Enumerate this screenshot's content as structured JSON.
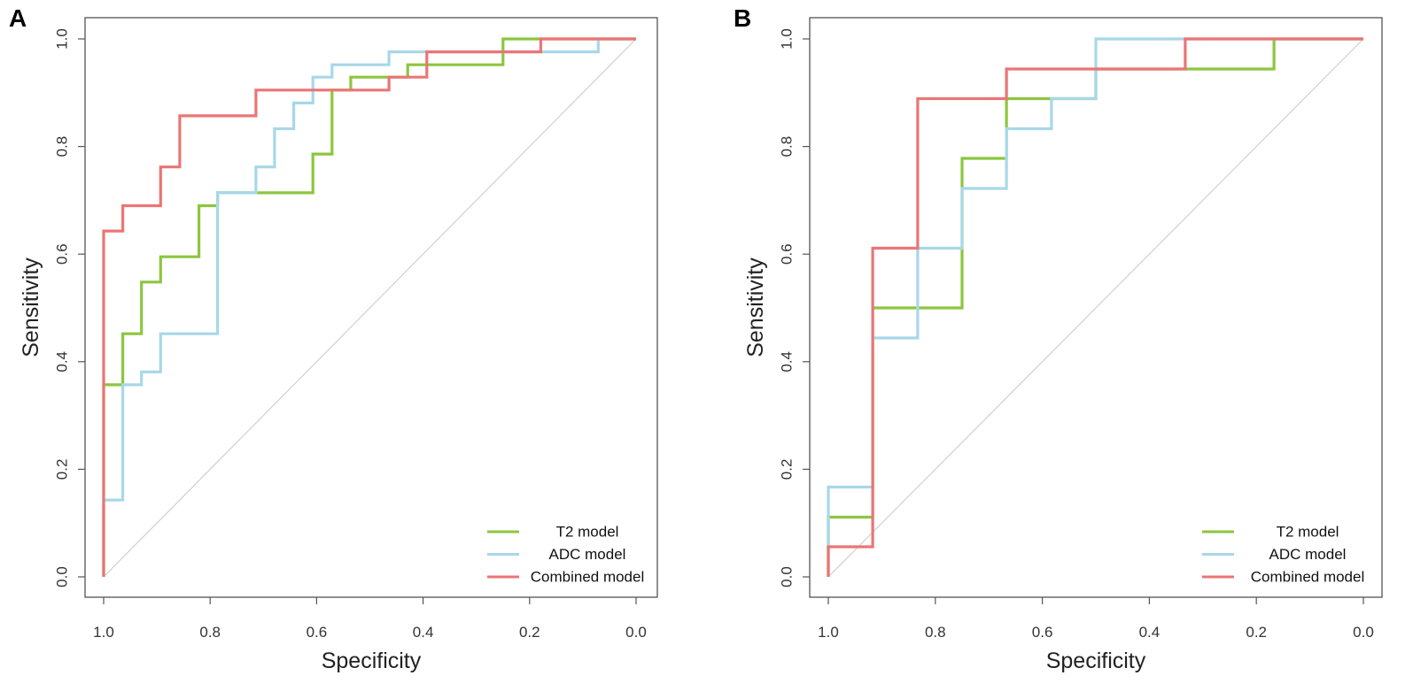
{
  "colors": {
    "t2": "#8CC63F",
    "adc": "#A7D8E8",
    "combined": "#EB7576",
    "diagonal": "#C8C8C8",
    "frame": "#555555"
  },
  "chart_data": [
    {
      "type": "line",
      "panel_label": "A",
      "title": "",
      "xlabel": "Specificity",
      "ylabel": "Sensitivity",
      "xlim": [
        1.0,
        0.0
      ],
      "ylim": [
        0.0,
        1.0
      ],
      "x_ticks": [
        "1.0",
        "0.8",
        "0.6",
        "0.4",
        "0.2",
        "0.0"
      ],
      "y_ticks": [
        "0.0",
        "0.2",
        "0.4",
        "0.6",
        "0.8",
        "1.0"
      ],
      "reference_line": "diagonal",
      "legend_position": "bottom-right",
      "series": [
        {
          "name": "T2 model",
          "color_key": "t2",
          "points": [
            [
              1.0,
              0.0
            ],
            [
              1.0,
              0.357
            ],
            [
              0.964,
              0.357
            ],
            [
              0.964,
              0.452
            ],
            [
              0.929,
              0.452
            ],
            [
              0.929,
              0.548
            ],
            [
              0.893,
              0.548
            ],
            [
              0.893,
              0.595
            ],
            [
              0.821,
              0.595
            ],
            [
              0.821,
              0.69
            ],
            [
              0.786,
              0.69
            ],
            [
              0.786,
              0.714
            ],
            [
              0.607,
              0.714
            ],
            [
              0.607,
              0.786
            ],
            [
              0.571,
              0.786
            ],
            [
              0.571,
              0.905
            ],
            [
              0.536,
              0.905
            ],
            [
              0.536,
              0.929
            ],
            [
              0.464,
              0.929
            ],
            [
              0.429,
              0.929
            ],
            [
              0.429,
              0.952
            ],
            [
              0.25,
              0.952
            ],
            [
              0.25,
              1.0
            ],
            [
              0.0,
              1.0
            ]
          ]
        },
        {
          "name": "ADC model",
          "color_key": "adc",
          "points": [
            [
              1.0,
              0.0
            ],
            [
              1.0,
              0.143
            ],
            [
              0.964,
              0.143
            ],
            [
              0.964,
              0.357
            ],
            [
              0.929,
              0.357
            ],
            [
              0.929,
              0.381
            ],
            [
              0.893,
              0.381
            ],
            [
              0.893,
              0.452
            ],
            [
              0.786,
              0.452
            ],
            [
              0.786,
              0.714
            ],
            [
              0.714,
              0.714
            ],
            [
              0.714,
              0.762
            ],
            [
              0.679,
              0.762
            ],
            [
              0.679,
              0.833
            ],
            [
              0.643,
              0.833
            ],
            [
              0.643,
              0.881
            ],
            [
              0.607,
              0.881
            ],
            [
              0.607,
              0.929
            ],
            [
              0.571,
              0.929
            ],
            [
              0.571,
              0.952
            ],
            [
              0.464,
              0.952
            ],
            [
              0.464,
              0.976
            ],
            [
              0.071,
              0.976
            ],
            [
              0.071,
              1.0
            ],
            [
              0.0,
              1.0
            ]
          ]
        },
        {
          "name": "Combined model",
          "color_key": "combined",
          "points": [
            [
              1.0,
              0.0
            ],
            [
              1.0,
              0.643
            ],
            [
              0.964,
              0.643
            ],
            [
              0.964,
              0.69
            ],
            [
              0.893,
              0.69
            ],
            [
              0.893,
              0.762
            ],
            [
              0.857,
              0.762
            ],
            [
              0.857,
              0.857
            ],
            [
              0.714,
              0.857
            ],
            [
              0.714,
              0.905
            ],
            [
              0.464,
              0.905
            ],
            [
              0.464,
              0.929
            ],
            [
              0.393,
              0.929
            ],
            [
              0.393,
              0.976
            ],
            [
              0.179,
              0.976
            ],
            [
              0.179,
              1.0
            ],
            [
              0.0,
              1.0
            ]
          ]
        }
      ]
    },
    {
      "type": "line",
      "panel_label": "B",
      "title": "",
      "xlabel": "Specificity",
      "ylabel": "Sensitivity",
      "xlim": [
        1.0,
        0.0
      ],
      "ylim": [
        0.0,
        1.0
      ],
      "x_ticks": [
        "1.0",
        "0.8",
        "0.6",
        "0.4",
        "0.2",
        "0.0"
      ],
      "y_ticks": [
        "0.0",
        "0.2",
        "0.4",
        "0.6",
        "0.8",
        "1.0"
      ],
      "reference_line": "diagonal",
      "legend_position": "bottom-right",
      "series": [
        {
          "name": "T2 model",
          "color_key": "t2",
          "points": [
            [
              1.0,
              0.0
            ],
            [
              1.0,
              0.111
            ],
            [
              0.917,
              0.111
            ],
            [
              0.917,
              0.5
            ],
            [
              0.75,
              0.5
            ],
            [
              0.75,
              0.778
            ],
            [
              0.667,
              0.778
            ],
            [
              0.667,
              0.889
            ],
            [
              0.5,
              0.889
            ],
            [
              0.5,
              0.944
            ],
            [
              0.167,
              0.944
            ],
            [
              0.167,
              1.0
            ],
            [
              0.0,
              1.0
            ]
          ]
        },
        {
          "name": "ADC model",
          "color_key": "adc",
          "points": [
            [
              1.0,
              0.0
            ],
            [
              1.0,
              0.167
            ],
            [
              0.917,
              0.167
            ],
            [
              0.917,
              0.444
            ],
            [
              0.833,
              0.444
            ],
            [
              0.833,
              0.611
            ],
            [
              0.75,
              0.611
            ],
            [
              0.75,
              0.722
            ],
            [
              0.667,
              0.722
            ],
            [
              0.667,
              0.833
            ],
            [
              0.583,
              0.833
            ],
            [
              0.583,
              0.889
            ],
            [
              0.5,
              0.889
            ],
            [
              0.5,
              1.0
            ],
            [
              0.0,
              1.0
            ]
          ]
        },
        {
          "name": "Combined model",
          "color_key": "combined",
          "points": [
            [
              1.0,
              0.0
            ],
            [
              1.0,
              0.056
            ],
            [
              0.917,
              0.056
            ],
            [
              0.917,
              0.611
            ],
            [
              0.833,
              0.611
            ],
            [
              0.833,
              0.889
            ],
            [
              0.667,
              0.889
            ],
            [
              0.667,
              0.944
            ],
            [
              0.333,
              0.944
            ],
            [
              0.333,
              1.0
            ],
            [
              0.0,
              1.0
            ]
          ]
        }
      ]
    }
  ]
}
